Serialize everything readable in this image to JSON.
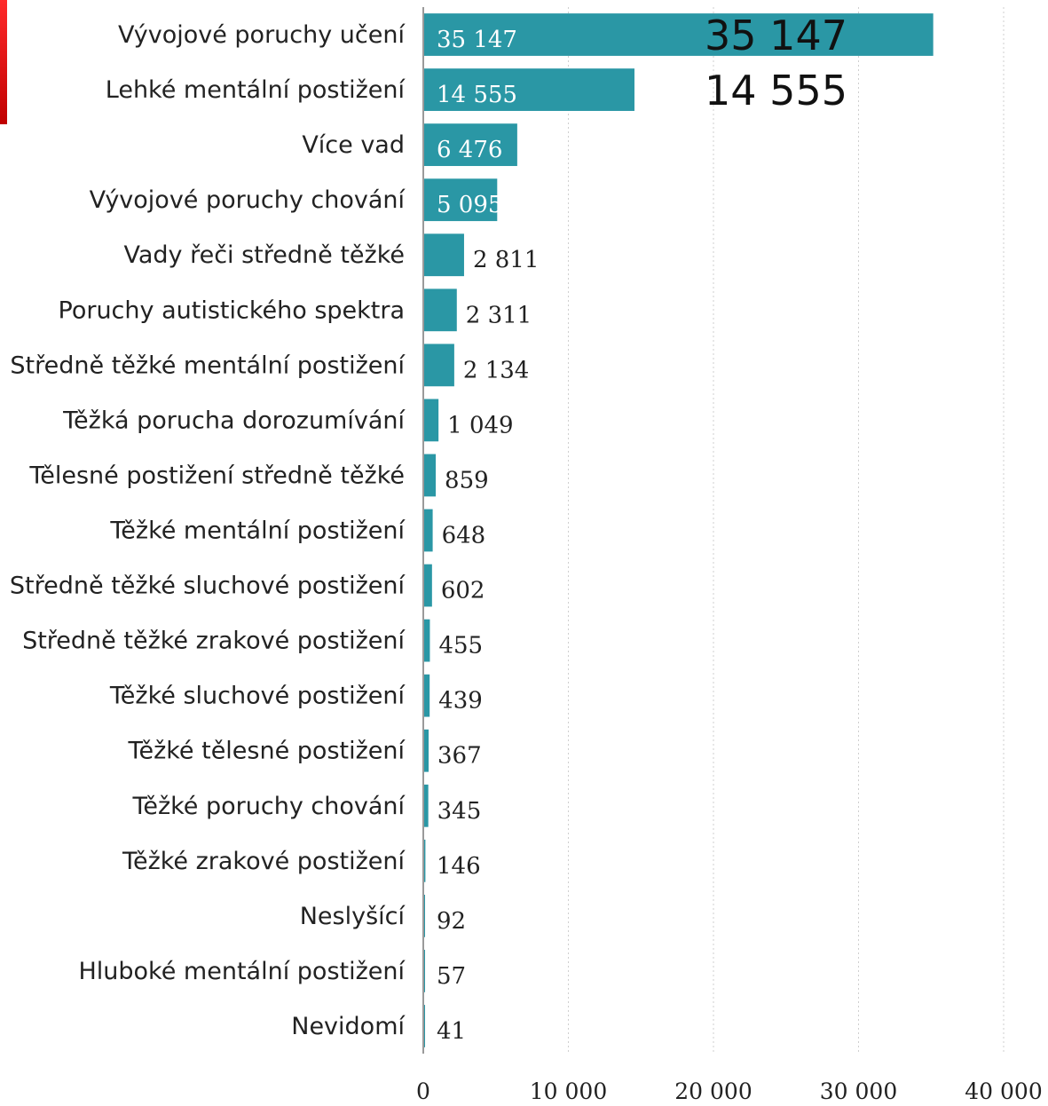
{
  "colors": {
    "bar": "#2a97a5",
    "grid": "#cfcfcf",
    "axis": "#9a9a9a",
    "accent": "#e01010"
  },
  "chart_data": {
    "type": "bar",
    "orientation": "horizontal",
    "categories": [
      "Vývojové poruchy učení",
      "Lehké mentální postižení",
      "Více vad",
      "Vývojové poruchy chování",
      "Vady řeči středně těžké",
      "Poruchy autistického spektra",
      "Středně těžké mentální postižení",
      "Těžká porucha dorozumívání",
      "Tělesné postižení středně těžké",
      "Těžké mentální postižení",
      "Středně těžké sluchové postižení",
      "Středně těžké zrakové postižení",
      "Těžké sluchové postižení",
      "Těžké tělesné postižení",
      "Těžké poruchy chování",
      "Těžké zrakové postižení",
      "Neslyšící",
      "Hluboké mentální postižení",
      "Nevidomí"
    ],
    "values": [
      35147,
      14555,
      6476,
      5095,
      2811,
      2311,
      2134,
      1049,
      859,
      648,
      602,
      455,
      439,
      367,
      345,
      146,
      92,
      57,
      41
    ],
    "data_labels": [
      "35 147",
      "14 555",
      "6 476",
      "5 095",
      "2 811",
      "2 311",
      "2 134",
      "1 049",
      "859",
      "648",
      "602",
      "455",
      "439",
      "367",
      "345",
      "146",
      "92",
      "57",
      "41"
    ],
    "xlim": [
      0,
      40000
    ],
    "x_ticks": [
      0,
      10000,
      20000,
      30000,
      40000
    ],
    "x_tick_labels": [
      "0",
      "10 000",
      "20 000",
      "30 000",
      "40 000"
    ],
    "grid": true,
    "annotations": [
      "35 147",
      "14 555"
    ]
  }
}
